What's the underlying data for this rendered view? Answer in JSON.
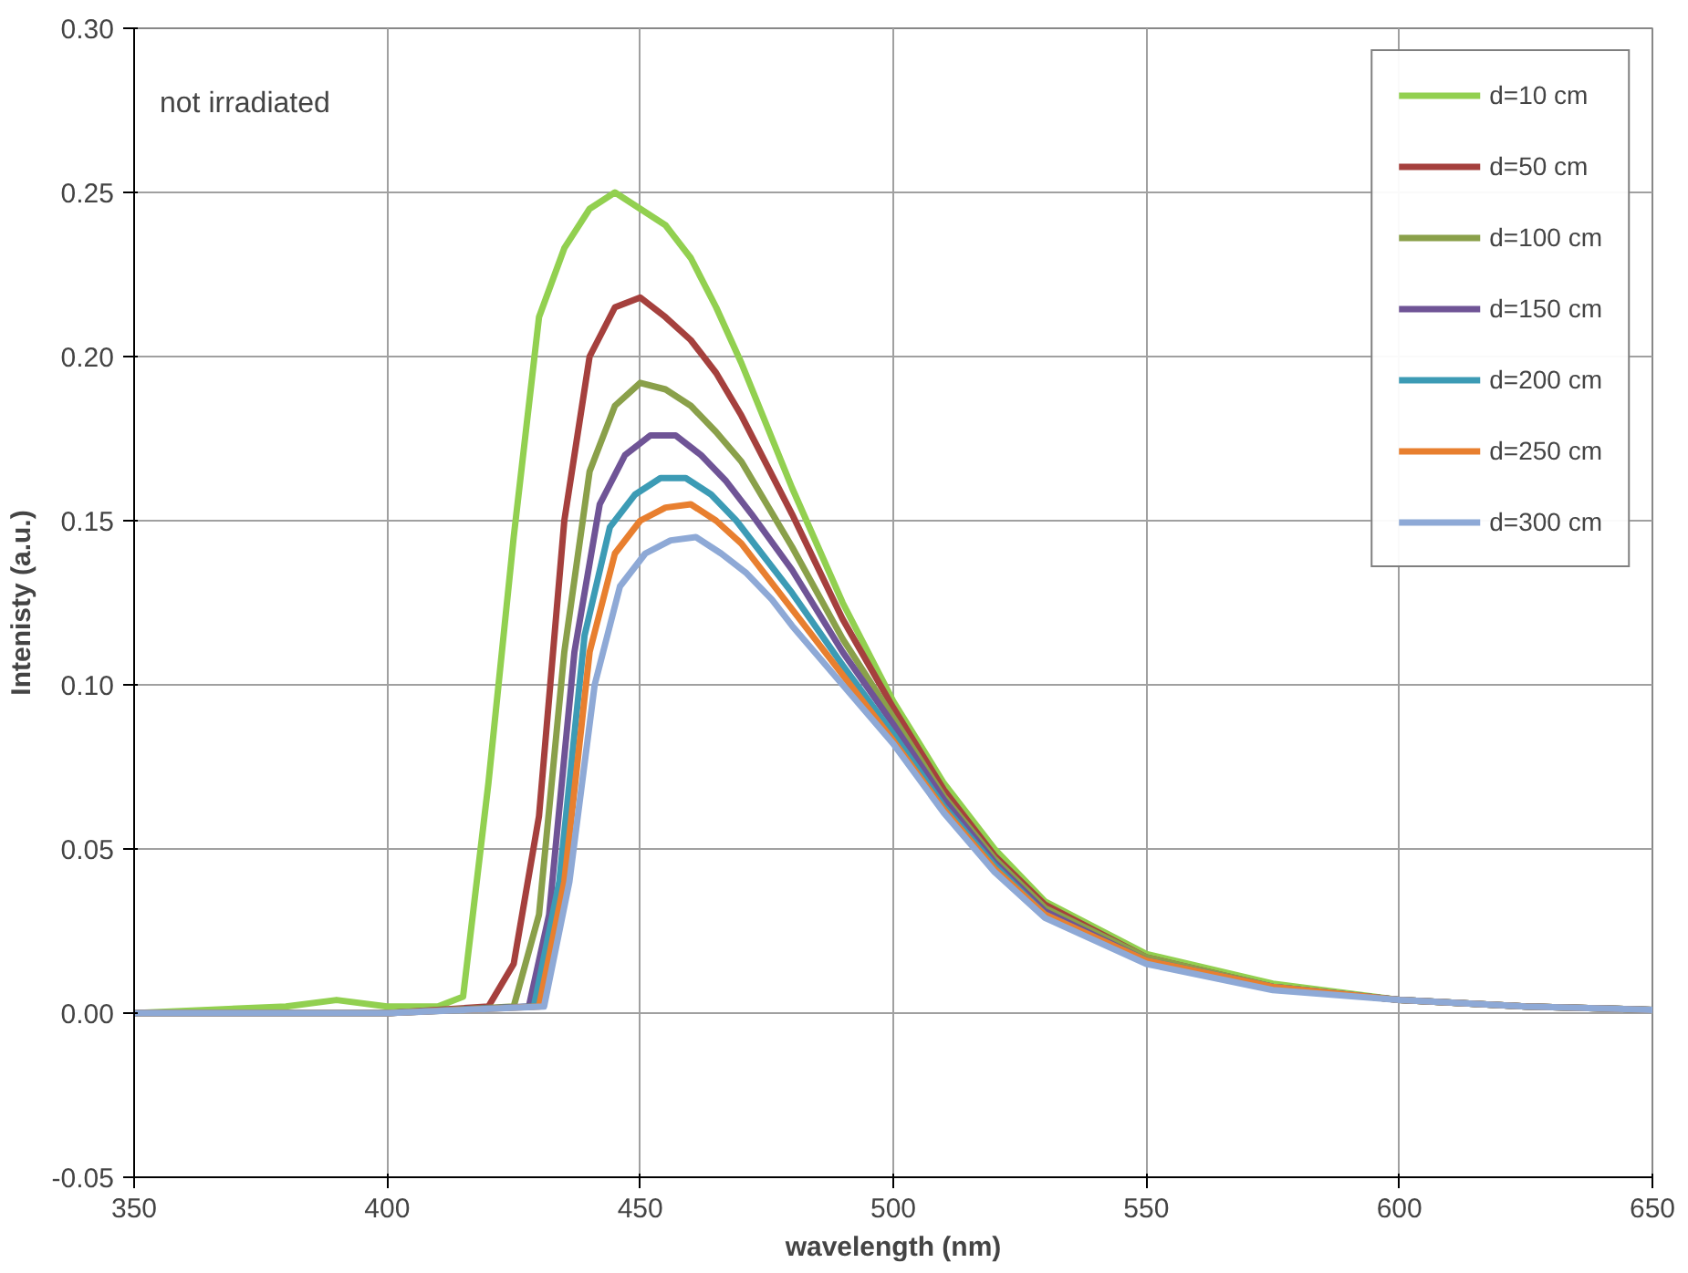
{
  "chart_data": {
    "type": "line",
    "xlabel": "wavelength (nm)",
    "ylabel": "Intenisty (a.u.)",
    "annotations": [
      "not irradiated"
    ],
    "xlim": [
      350,
      650
    ],
    "xticks": [
      350,
      400,
      450,
      500,
      550,
      600,
      650
    ],
    "ylim": [
      -0.05,
      0.3
    ],
    "yticks": [
      {
        "value": -0.05,
        "label": "-0.05"
      },
      {
        "value": 0,
        "label": "0.00"
      },
      {
        "value": 0.05,
        "label": "0.05"
      },
      {
        "value": 0.1,
        "label": "0.10"
      },
      {
        "value": 0.15,
        "label": "0.15"
      },
      {
        "value": 0.2,
        "label": "0.20"
      },
      {
        "value": 0.25,
        "label": "0.25"
      },
      {
        "value": 0.3,
        "label": "0.30"
      }
    ],
    "grid": true,
    "legend": "top right",
    "marker": "none",
    "line_style": "solid",
    "series": [
      {
        "name": "d=10 cm",
        "color": "#92d050",
        "x": [
          350,
          380,
          390,
          400,
          410,
          415,
          420,
          425,
          430,
          435,
          440,
          445,
          450,
          455,
          460,
          465,
          470,
          480,
          490,
          500,
          510,
          520,
          530,
          550,
          575,
          600,
          625,
          650
        ],
        "values": [
          0,
          0.002,
          0.004,
          0.002,
          0.002,
          0.005,
          0.07,
          0.145,
          0.212,
          0.233,
          0.245,
          0.25,
          0.245,
          0.24,
          0.23,
          0.215,
          0.198,
          0.16,
          0.125,
          0.095,
          0.07,
          0.05,
          0.034,
          0.018,
          0.009,
          0.004,
          0.002,
          0.001
        ]
      },
      {
        "name": "d=50 cm",
        "color": "#a5403d",
        "x": [
          350,
          400,
          420,
          425,
          430,
          435,
          440,
          445,
          450,
          455,
          460,
          465,
          470,
          480,
          490,
          500,
          510,
          520,
          530,
          550,
          575,
          600,
          625,
          650
        ],
        "values": [
          0,
          0,
          0.002,
          0.015,
          0.06,
          0.15,
          0.2,
          0.215,
          0.218,
          0.212,
          0.205,
          0.195,
          0.182,
          0.152,
          0.12,
          0.093,
          0.068,
          0.048,
          0.033,
          0.017,
          0.008,
          0.004,
          0.002,
          0.001
        ]
      },
      {
        "name": "d=100 cm",
        "color": "#8aa04a",
        "x": [
          350,
          400,
          425,
          430,
          435,
          440,
          445,
          450,
          455,
          460,
          465,
          470,
          480,
          490,
          500,
          510,
          520,
          530,
          550,
          575,
          600,
          625,
          650
        ],
        "values": [
          0,
          0,
          0.002,
          0.03,
          0.11,
          0.165,
          0.185,
          0.192,
          0.19,
          0.185,
          0.177,
          0.168,
          0.142,
          0.114,
          0.09,
          0.066,
          0.047,
          0.032,
          0.017,
          0.008,
          0.004,
          0.002,
          0.001
        ]
      },
      {
        "name": "d=150 cm",
        "color": "#6f5496",
        "x": [
          350,
          400,
          428,
          432,
          437,
          442,
          447,
          452,
          457,
          462,
          467,
          472,
          480,
          490,
          500,
          510,
          520,
          530,
          550,
          575,
          600,
          625,
          650
        ],
        "values": [
          0,
          0,
          0.002,
          0.03,
          0.11,
          0.155,
          0.17,
          0.176,
          0.176,
          0.17,
          0.162,
          0.152,
          0.135,
          0.11,
          0.088,
          0.065,
          0.046,
          0.031,
          0.016,
          0.008,
          0.004,
          0.002,
          0.001
        ]
      },
      {
        "name": "d=200 cm",
        "color": "#3c9bb5",
        "x": [
          350,
          400,
          429,
          434,
          439,
          444,
          449,
          454,
          459,
          464,
          469,
          474,
          480,
          490,
          500,
          510,
          520,
          530,
          550,
          575,
          600,
          625,
          650
        ],
        "values": [
          0,
          0,
          0.002,
          0.04,
          0.115,
          0.148,
          0.158,
          0.163,
          0.163,
          0.158,
          0.15,
          0.14,
          0.128,
          0.106,
          0.085,
          0.063,
          0.045,
          0.03,
          0.016,
          0.008,
          0.004,
          0.002,
          0.001
        ]
      },
      {
        "name": "d=250 cm",
        "color": "#e87f2f",
        "x": [
          350,
          400,
          430,
          435,
          440,
          445,
          450,
          455,
          460,
          465,
          470,
          475,
          480,
          490,
          500,
          510,
          520,
          530,
          550,
          575,
          600,
          625,
          650
        ],
        "values": [
          0,
          0,
          0.002,
          0.04,
          0.11,
          0.14,
          0.15,
          0.154,
          0.155,
          0.15,
          0.143,
          0.133,
          0.123,
          0.103,
          0.083,
          0.062,
          0.044,
          0.03,
          0.016,
          0.008,
          0.004,
          0.002,
          0.001
        ]
      },
      {
        "name": "d=300 cm",
        "color": "#8ea9d6",
        "x": [
          350,
          400,
          431,
          436,
          441,
          446,
          451,
          456,
          461,
          466,
          471,
          476,
          480,
          490,
          500,
          510,
          520,
          530,
          550,
          575,
          600,
          625,
          650
        ],
        "values": [
          0,
          0,
          0.002,
          0.04,
          0.1,
          0.13,
          0.14,
          0.144,
          0.145,
          0.14,
          0.134,
          0.126,
          0.118,
          0.1,
          0.082,
          0.061,
          0.043,
          0.029,
          0.015,
          0.007,
          0.004,
          0.002,
          0.001
        ]
      }
    ]
  }
}
